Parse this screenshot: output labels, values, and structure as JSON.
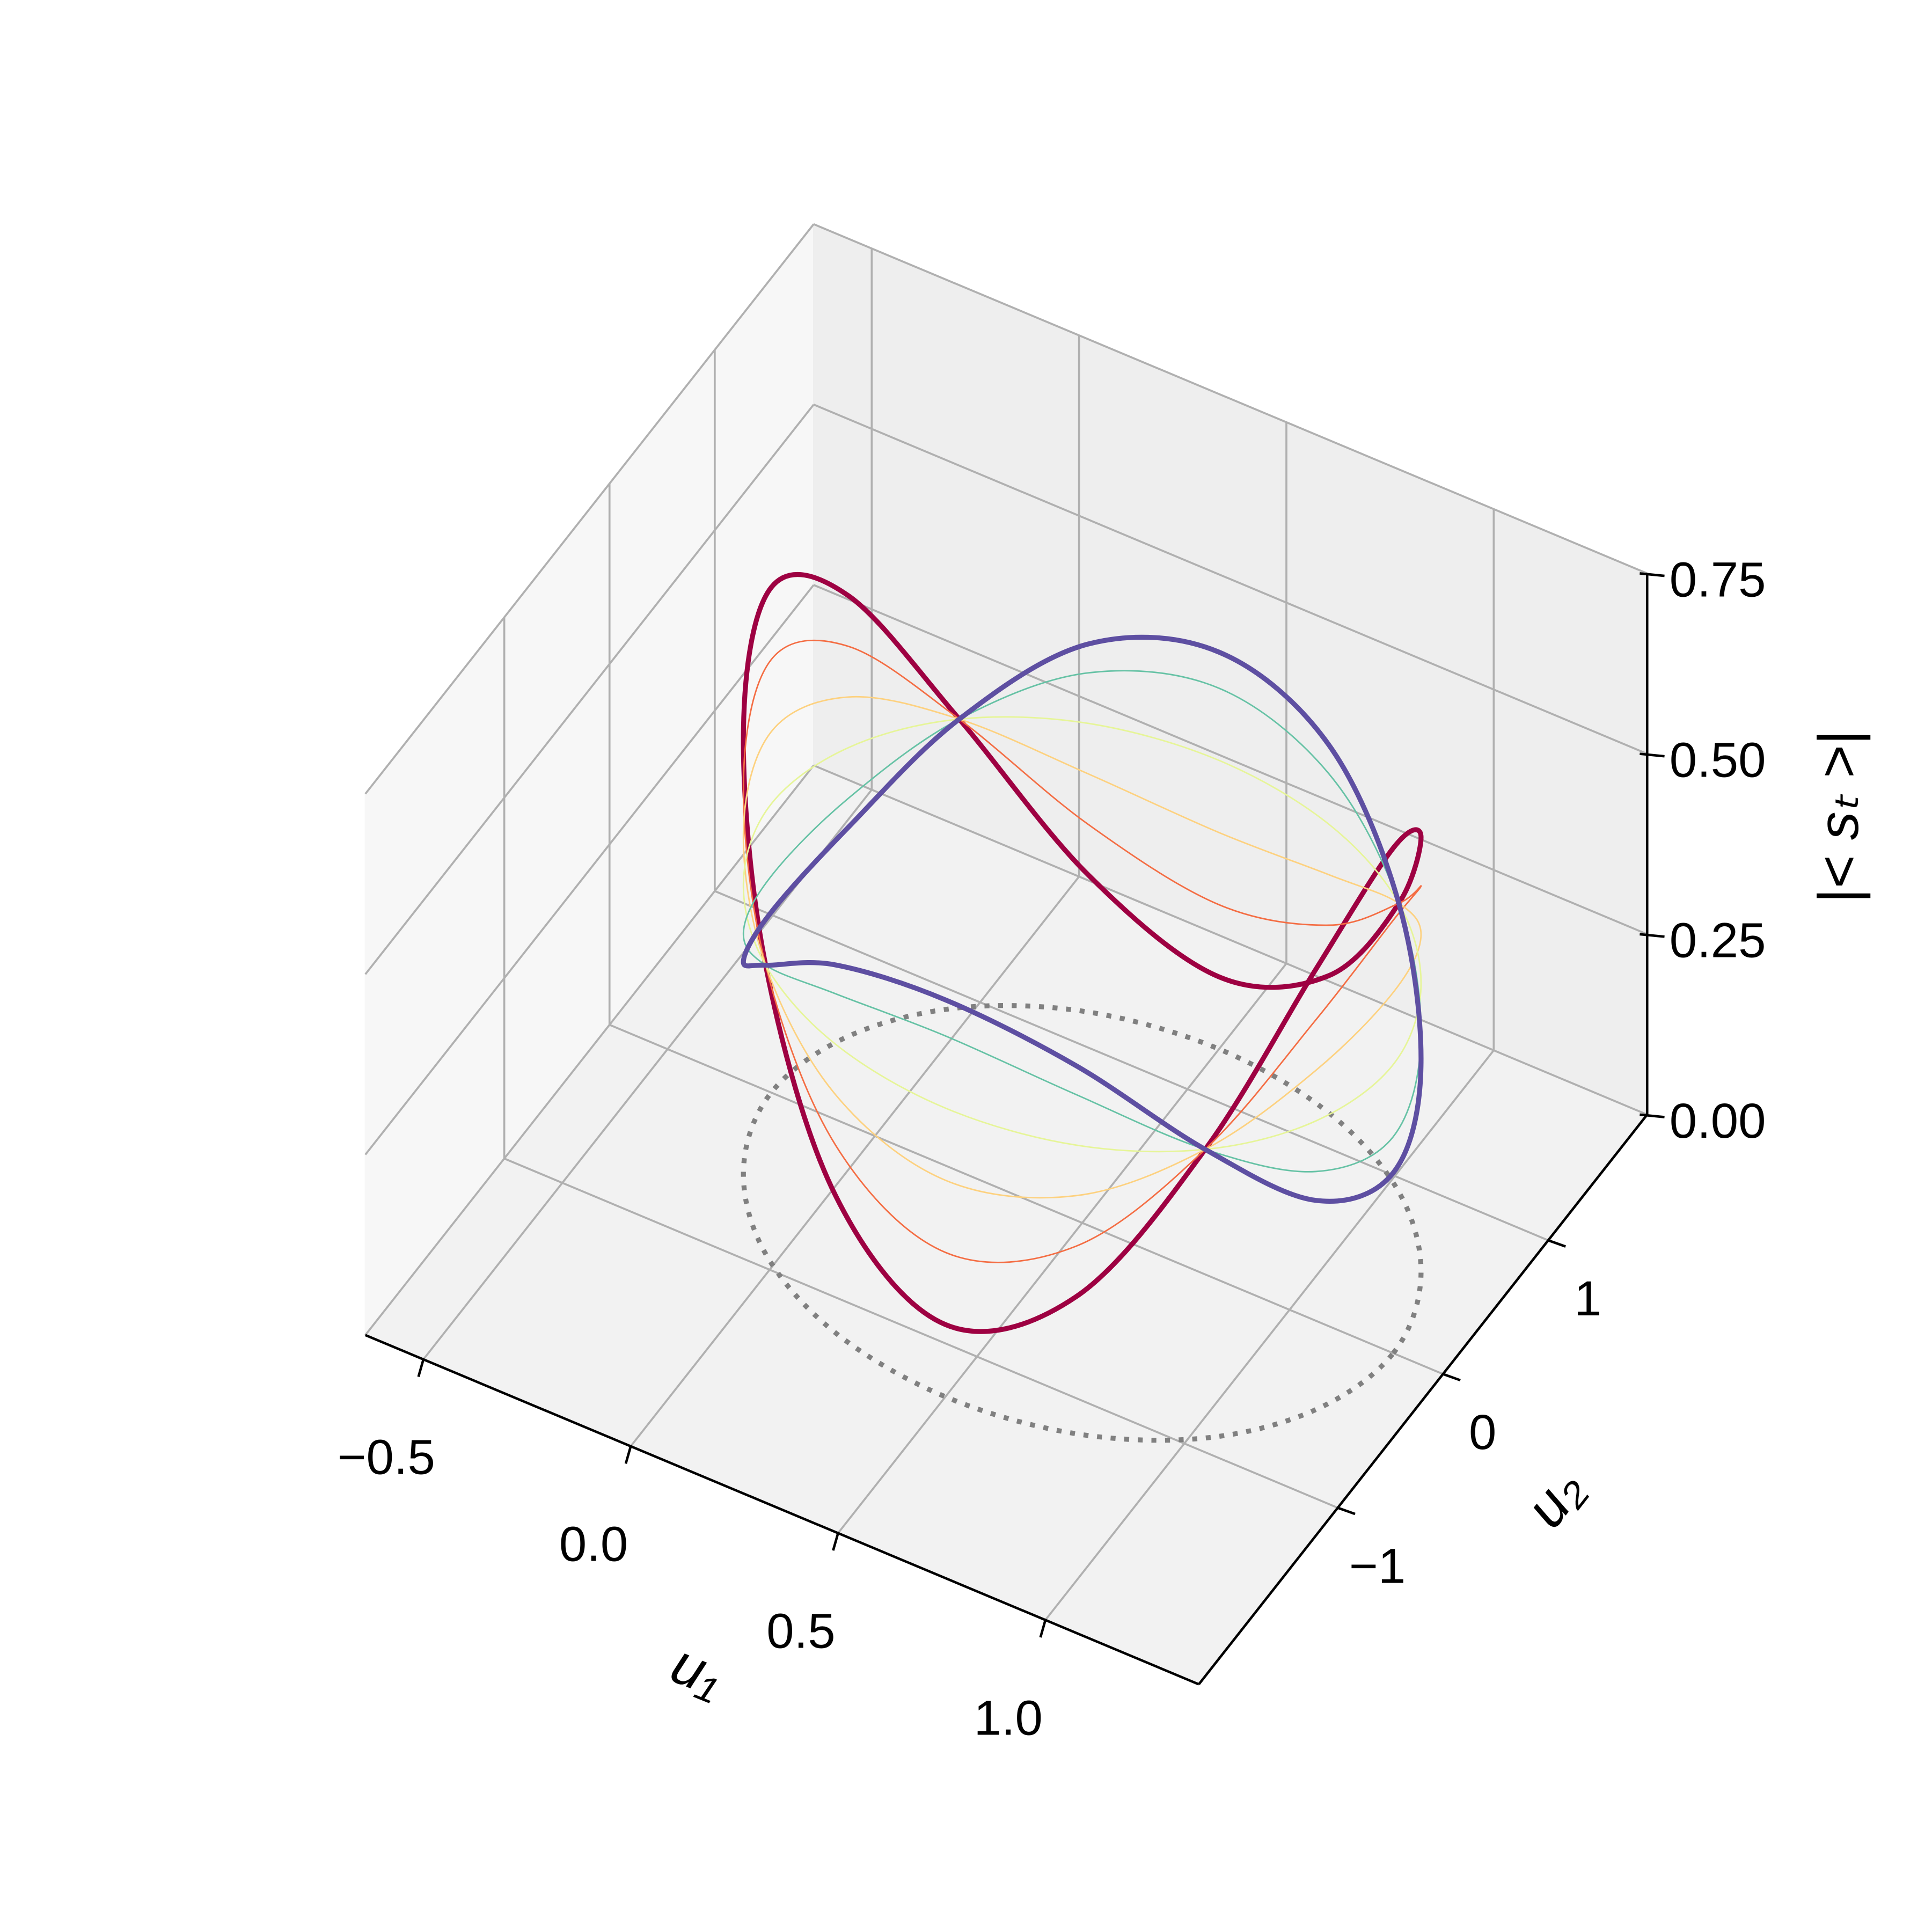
{
  "chart_data": {
    "type": "line3d",
    "x": [
      1.25,
      1.19,
      1.03,
      0.79,
      0.5,
      0.21,
      -0.03,
      -0.19,
      -0.25,
      -0.19,
      -0.03,
      0.21,
      0.5,
      0.79,
      1.03,
      1.19
    ],
    "y": [
      0,
      0.5,
      0.92,
      1.2,
      1.3,
      1.2,
      0.92,
      0.5,
      0,
      -0.5,
      -0.92,
      -1.2,
      -1.3,
      -1.2,
      -0.92,
      -0.5
    ],
    "series": [
      {
        "color": "#9e0142",
        "width": 4,
        "values": [
          0.7,
          0.61,
          0.4,
          0.19,
          0.1,
          0.19,
          0.4,
          0.61,
          0.7,
          0.61,
          0.4,
          0.19,
          0.1,
          0.19,
          0.4,
          0.61
        ]
      },
      {
        "color": "#f46d43",
        "width": 1.2,
        "values": [
          0.6,
          0.54,
          0.4,
          0.26,
          0.2,
          0.26,
          0.4,
          0.54,
          0.6,
          0.54,
          0.4,
          0.26,
          0.2,
          0.26,
          0.4,
          0.54
        ]
      },
      {
        "color": "#fdd17f",
        "width": 1.2,
        "values": [
          0.5,
          0.47,
          0.4,
          0.33,
          0.3,
          0.33,
          0.4,
          0.47,
          0.5,
          0.47,
          0.4,
          0.33,
          0.3,
          0.33,
          0.4,
          0.47
        ]
      },
      {
        "color": "#e6f598",
        "width": 1.2,
        "values": [
          0.4,
          0.4,
          0.4,
          0.4,
          0.4,
          0.4,
          0.4,
          0.4,
          0.4,
          0.4,
          0.4,
          0.4,
          0.4,
          0.4,
          0.4,
          0.4
        ]
      },
      {
        "color": "#66c2a5",
        "width": 1.2,
        "values": [
          0.3,
          0.33,
          0.4,
          0.47,
          0.5,
          0.47,
          0.4,
          0.33,
          0.3,
          0.33,
          0.4,
          0.47,
          0.5,
          0.47,
          0.4,
          0.33
        ]
      },
      {
        "color": "#5e4fa2",
        "width": 4,
        "values": [
          0.25,
          0.29,
          0.4,
          0.51,
          0.55,
          0.51,
          0.4,
          0.29,
          0.25,
          0.29,
          0.4,
          0.51,
          0.55,
          0.51,
          0.4,
          0.29
        ]
      }
    ],
    "projection": {
      "color": "#808080",
      "style": "dotted"
    },
    "xlim": [
      -0.64,
      1.37
    ],
    "ylim": [
      -2.32,
      1.94
    ],
    "zlim": [
      0,
      0.75
    ],
    "xticks": [
      {
        "value": -0.5,
        "label": "−0.5"
      },
      {
        "value": 0,
        "label": "0.0"
      },
      {
        "value": 0.5,
        "label": "0.5"
      },
      {
        "value": 1,
        "label": "1.0"
      }
    ],
    "yticks": [
      {
        "value": -1,
        "label": "−1"
      },
      0,
      1
    ],
    "zticks": [
      {
        "value": 0,
        "label": "0.00"
      },
      {
        "value": 0.25,
        "label": "0.25"
      },
      {
        "value": 0.5,
        "label": "0.50"
      },
      0.75
    ],
    "xlabel": "u₁",
    "ylabel": "u₂",
    "zlabel": "|< sₜ >|",
    "grid": true
  }
}
